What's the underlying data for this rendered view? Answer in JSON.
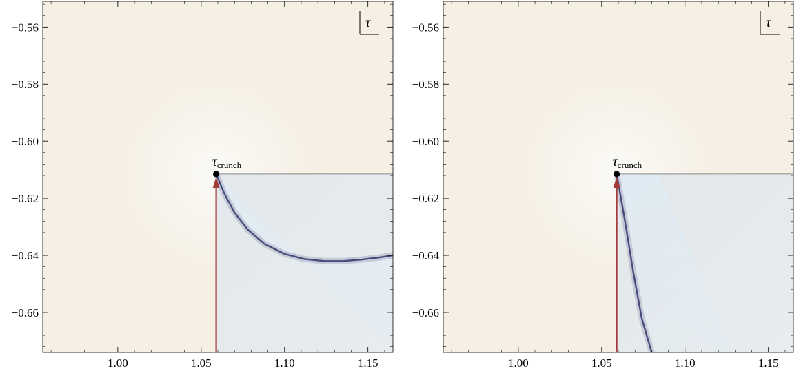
{
  "chart_data": [
    {
      "type": "heatmap",
      "panel": "left",
      "title": "",
      "xlabel": "",
      "ylabel": "",
      "xlim": [
        0.955,
        1.165
      ],
      "ylim": [
        -0.674,
        -0.551
      ],
      "x_ticks": [
        1.0,
        1.05,
        1.1,
        1.15
      ],
      "x_tick_labels": [
        "1.00",
        "1.05",
        "1.10",
        "1.15"
      ],
      "y_ticks": [
        -0.56,
        -0.58,
        -0.6,
        -0.62,
        -0.64,
        -0.66
      ],
      "y_tick_labels": [
        "−0.56",
        "−0.58",
        "−0.60",
        "−0.62",
        "−0.64",
        "−0.66"
      ],
      "legend": {
        "symbol": "τ",
        "placement": "top-right"
      },
      "branch_cut": {
        "from": [
          1.059,
          -0.6115
        ],
        "to": [
          1.165,
          -0.6115
        ]
      },
      "point": {
        "label": "τ",
        "subscript": "crunch",
        "x": 1.059,
        "y": -0.6115
      },
      "arrow": {
        "from": [
          1.059,
          -0.674
        ],
        "to": [
          1.059,
          -0.6125
        ]
      },
      "singular_curve": {
        "x": [
          1.059,
          1.064,
          1.07,
          1.078,
          1.088,
          1.1,
          1.112,
          1.124,
          1.135,
          1.146,
          1.156,
          1.165
        ],
        "y": [
          -0.6115,
          -0.6185,
          -0.625,
          -0.631,
          -0.636,
          -0.6395,
          -0.6413,
          -0.642,
          -0.642,
          -0.6415,
          -0.6408,
          -0.64
        ]
      },
      "colors": {
        "background": "#f6efe3",
        "lower_region": "#e3e8ec",
        "bright_region": "#dceefb",
        "curve": "#4a4a7a",
        "arrow": "#a33a3a"
      }
    },
    {
      "type": "heatmap",
      "panel": "right",
      "title": "",
      "xlabel": "",
      "ylabel": "",
      "xlim": [
        0.955,
        1.165
      ],
      "ylim": [
        -0.674,
        -0.551
      ],
      "x_ticks": [
        1.0,
        1.05,
        1.1,
        1.15
      ],
      "x_tick_labels": [
        "1.00",
        "1.05",
        "1.10",
        "1.15"
      ],
      "y_ticks": [
        -0.56,
        -0.58,
        -0.6,
        -0.62,
        -0.64,
        -0.66
      ],
      "y_tick_labels": [
        "−0.56",
        "−0.58",
        "−0.60",
        "−0.62",
        "−0.64",
        "−0.66"
      ],
      "legend": {
        "symbol": "τ",
        "placement": "top-right"
      },
      "branch_cut": {
        "from": [
          1.059,
          -0.6115
        ],
        "to": [
          1.165,
          -0.6115
        ]
      },
      "point": {
        "label": "τ",
        "subscript": "crunch",
        "x": 1.059,
        "y": -0.6115
      },
      "arrow": {
        "from": [
          1.059,
          -0.674
        ],
        "to": [
          1.059,
          -0.6125
        ]
      },
      "singular_curve": {
        "x": [
          1.059,
          1.064,
          1.069,
          1.074,
          1.08
        ],
        "y": [
          -0.6115,
          -0.628,
          -0.646,
          -0.662,
          -0.674
        ]
      },
      "colors": {
        "background": "#f6efe3",
        "lower_region": "#e4e7e9",
        "bright_region": "#dceefb",
        "curve": "#4a4a7a",
        "arrow": "#a33a3a"
      }
    }
  ]
}
